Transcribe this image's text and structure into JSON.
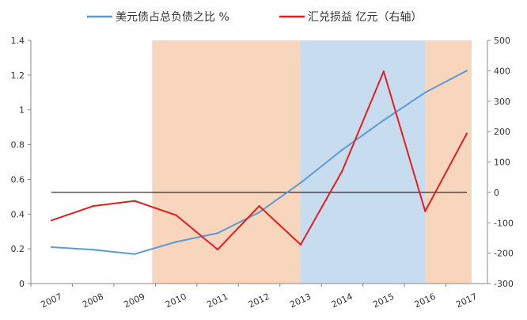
{
  "chart_data": {
    "type": "line",
    "categories": [
      "2007",
      "2008",
      "2009",
      "2010",
      "2011",
      "2012",
      "2013",
      "2014",
      "2015",
      "2016",
      "2017"
    ],
    "series": [
      {
        "name": "美元债占总负债之比 %",
        "axis": "left",
        "color": "#5b9bd5",
        "values": [
          0.21,
          0.195,
          0.17,
          0.24,
          0.29,
          0.41,
          0.58,
          0.77,
          0.94,
          1.1,
          1.225
        ]
      },
      {
        "name": "汇兑损益 亿元（右轴）",
        "axis": "right",
        "color": "#e41e1e",
        "values": [
          -92,
          -45,
          -28,
          -75,
          -188,
          -45,
          -172,
          70,
          398,
          -62,
          193
        ]
      }
    ],
    "y_left": {
      "min": 0,
      "max": 1.4,
      "ticks": [
        "0",
        "0.2",
        "0.4",
        "0.6",
        "0.8",
        "1",
        "1.2",
        "1.4"
      ]
    },
    "y_right": {
      "min": -300,
      "max": 500,
      "ticks": [
        "-300",
        "-200",
        "-100",
        "0",
        "100",
        "200",
        "300",
        "400",
        "500"
      ]
    },
    "zero_line_right": 0,
    "shaded_periods": [
      {
        "from": "2009",
        "to": "2013",
        "color": "#f8d5bd",
        "edge": "late-start"
      },
      {
        "from": "2013",
        "to": "2016",
        "color": "#c8dcef"
      },
      {
        "from": "2016",
        "to": "2017",
        "color": "#f8d5bd"
      }
    ],
    "legend_position": "top"
  }
}
